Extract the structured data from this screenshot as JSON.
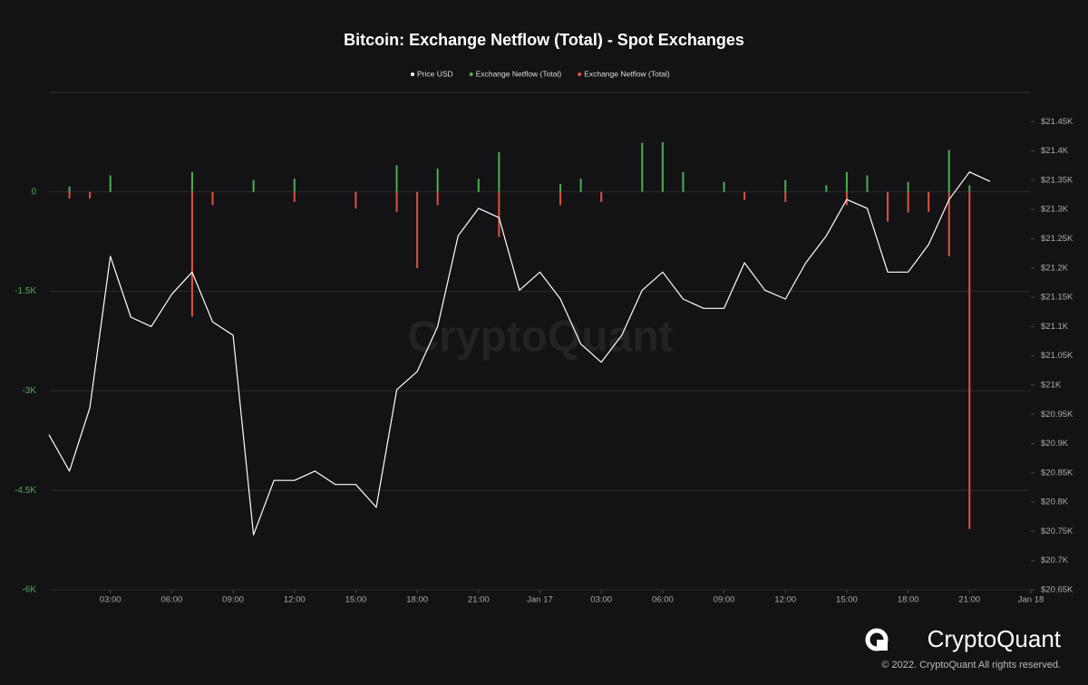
{
  "chart_data": {
    "type": "line-bar",
    "title": "Bitcoin: Exchange Netflow (Total) - Spot Exchanges",
    "watermark": "CryptoQuant",
    "brand": "CryptoQuant",
    "copyright": "© 2022. CryptoQuant All rights reserved.",
    "x": [
      0,
      1,
      2,
      3,
      4,
      5,
      6,
      7,
      8,
      9,
      10,
      11,
      12,
      13,
      14,
      15,
      16,
      17,
      18,
      19,
      20,
      21,
      22,
      23,
      24,
      25,
      26,
      27,
      28,
      29,
      30,
      31,
      32,
      33,
      34,
      35,
      36,
      37,
      38,
      39,
      40,
      41,
      42,
      43,
      44,
      45,
      46
    ],
    "xlim": [
      0,
      48
    ],
    "xticks": [
      {
        "value": 3,
        "label": "03:00"
      },
      {
        "value": 6,
        "label": "06:00"
      },
      {
        "value": 9,
        "label": "09:00"
      },
      {
        "value": 12,
        "label": "12:00"
      },
      {
        "value": 15,
        "label": "15:00"
      },
      {
        "value": 18,
        "label": "18:00"
      },
      {
        "value": 21,
        "label": "21:00"
      },
      {
        "value": 24,
        "label": "Jan 17"
      },
      {
        "value": 27,
        "label": "03:00"
      },
      {
        "value": 30,
        "label": "06:00"
      },
      {
        "value": 33,
        "label": "09:00"
      },
      {
        "value": 36,
        "label": "12:00"
      },
      {
        "value": 39,
        "label": "15:00"
      },
      {
        "value": 42,
        "label": "18:00"
      },
      {
        "value": 45,
        "label": "21:00"
      },
      {
        "value": 48,
        "label": "Jan 18"
      }
    ],
    "ylim": [
      -6000,
      1500
    ],
    "yticks": [
      0,
      {
        "value": -1500,
        "label": "-1.5K"
      },
      {
        "value": -3000,
        "label": "-3K"
      },
      {
        "value": -4500,
        "label": "-4.5K"
      },
      {
        "value": -6000,
        "label": "-6K"
      }
    ],
    "y2lim": [
      20650,
      21500
    ],
    "y2ticks": [
      {
        "value": 21450,
        "label": "$21.45K"
      },
      {
        "value": 21400,
        "label": "$21.4K"
      },
      {
        "value": 21350,
        "label": "$21.35K"
      },
      {
        "value": 21300,
        "label": "$21.3K"
      },
      {
        "value": 21250,
        "label": "$21.25K"
      },
      {
        "value": 21200,
        "label": "$21.2K"
      },
      {
        "value": 21150,
        "label": "$21.15K"
      },
      {
        "value": 21100,
        "label": "$21.1K"
      },
      {
        "value": 21050,
        "label": "$21.05K"
      },
      {
        "value": 21000,
        "label": "$21K"
      },
      {
        "value": 20950,
        "label": "$20.95K"
      },
      {
        "value": 20900,
        "label": "$20.9K"
      },
      {
        "value": 20850,
        "label": "$20.85K"
      },
      {
        "value": 20800,
        "label": "$20.8K"
      },
      {
        "value": 20750,
        "label": "$20.75K"
      },
      {
        "value": 20700,
        "label": "$20.7K"
      },
      {
        "value": 20650,
        "label": "$20.65K"
      }
    ],
    "grid": true,
    "series": [
      {
        "name": "Price USD",
        "color": "#ffffff",
        "axis": "y2",
        "kind": "line",
        "values": [
          20915,
          20853,
          20961,
          21220,
          21116,
          21100,
          21155,
          21193,
          21108,
          21085,
          20744,
          20837,
          20837,
          20853,
          20830,
          20830,
          20791,
          20992,
          21023,
          21100,
          21255,
          21302,
          21286,
          21162,
          21193,
          21147,
          21070,
          21039,
          21085,
          21162,
          21193,
          21147,
          21131,
          21131,
          21209,
          21162,
          21147,
          21209,
          21255,
          21317,
          21302,
          21193,
          21193,
          21240,
          21317,
          21364,
          21348
        ]
      },
      {
        "name": "Exchange Netflow (Total)",
        "color": "#4caf50",
        "kind": "bar",
        "values": [
          null,
          80,
          null,
          250,
          null,
          null,
          null,
          300,
          null,
          null,
          180,
          null,
          200,
          null,
          null,
          null,
          null,
          400,
          null,
          350,
          null,
          200,
          600,
          null,
          null,
          120,
          200,
          null,
          null,
          740,
          750,
          300,
          null,
          150,
          null,
          null,
          180,
          null,
          100,
          300,
          250,
          null,
          150,
          null,
          630,
          100,
          null
        ]
      },
      {
        "name": "Exchange Netflow (Total)",
        "color": "#e0513f",
        "kind": "bar",
        "values": [
          null,
          -100,
          -100,
          null,
          null,
          null,
          null,
          -1880,
          -200,
          null,
          null,
          null,
          -150,
          null,
          null,
          -250,
          null,
          -300,
          -1150,
          -200,
          null,
          null,
          -680,
          null,
          null,
          -200,
          null,
          -150,
          null,
          null,
          null,
          null,
          null,
          null,
          -120,
          null,
          -150,
          null,
          null,
          -200,
          null,
          -450,
          -310,
          -300,
          -970,
          -5080,
          null
        ]
      }
    ]
  }
}
